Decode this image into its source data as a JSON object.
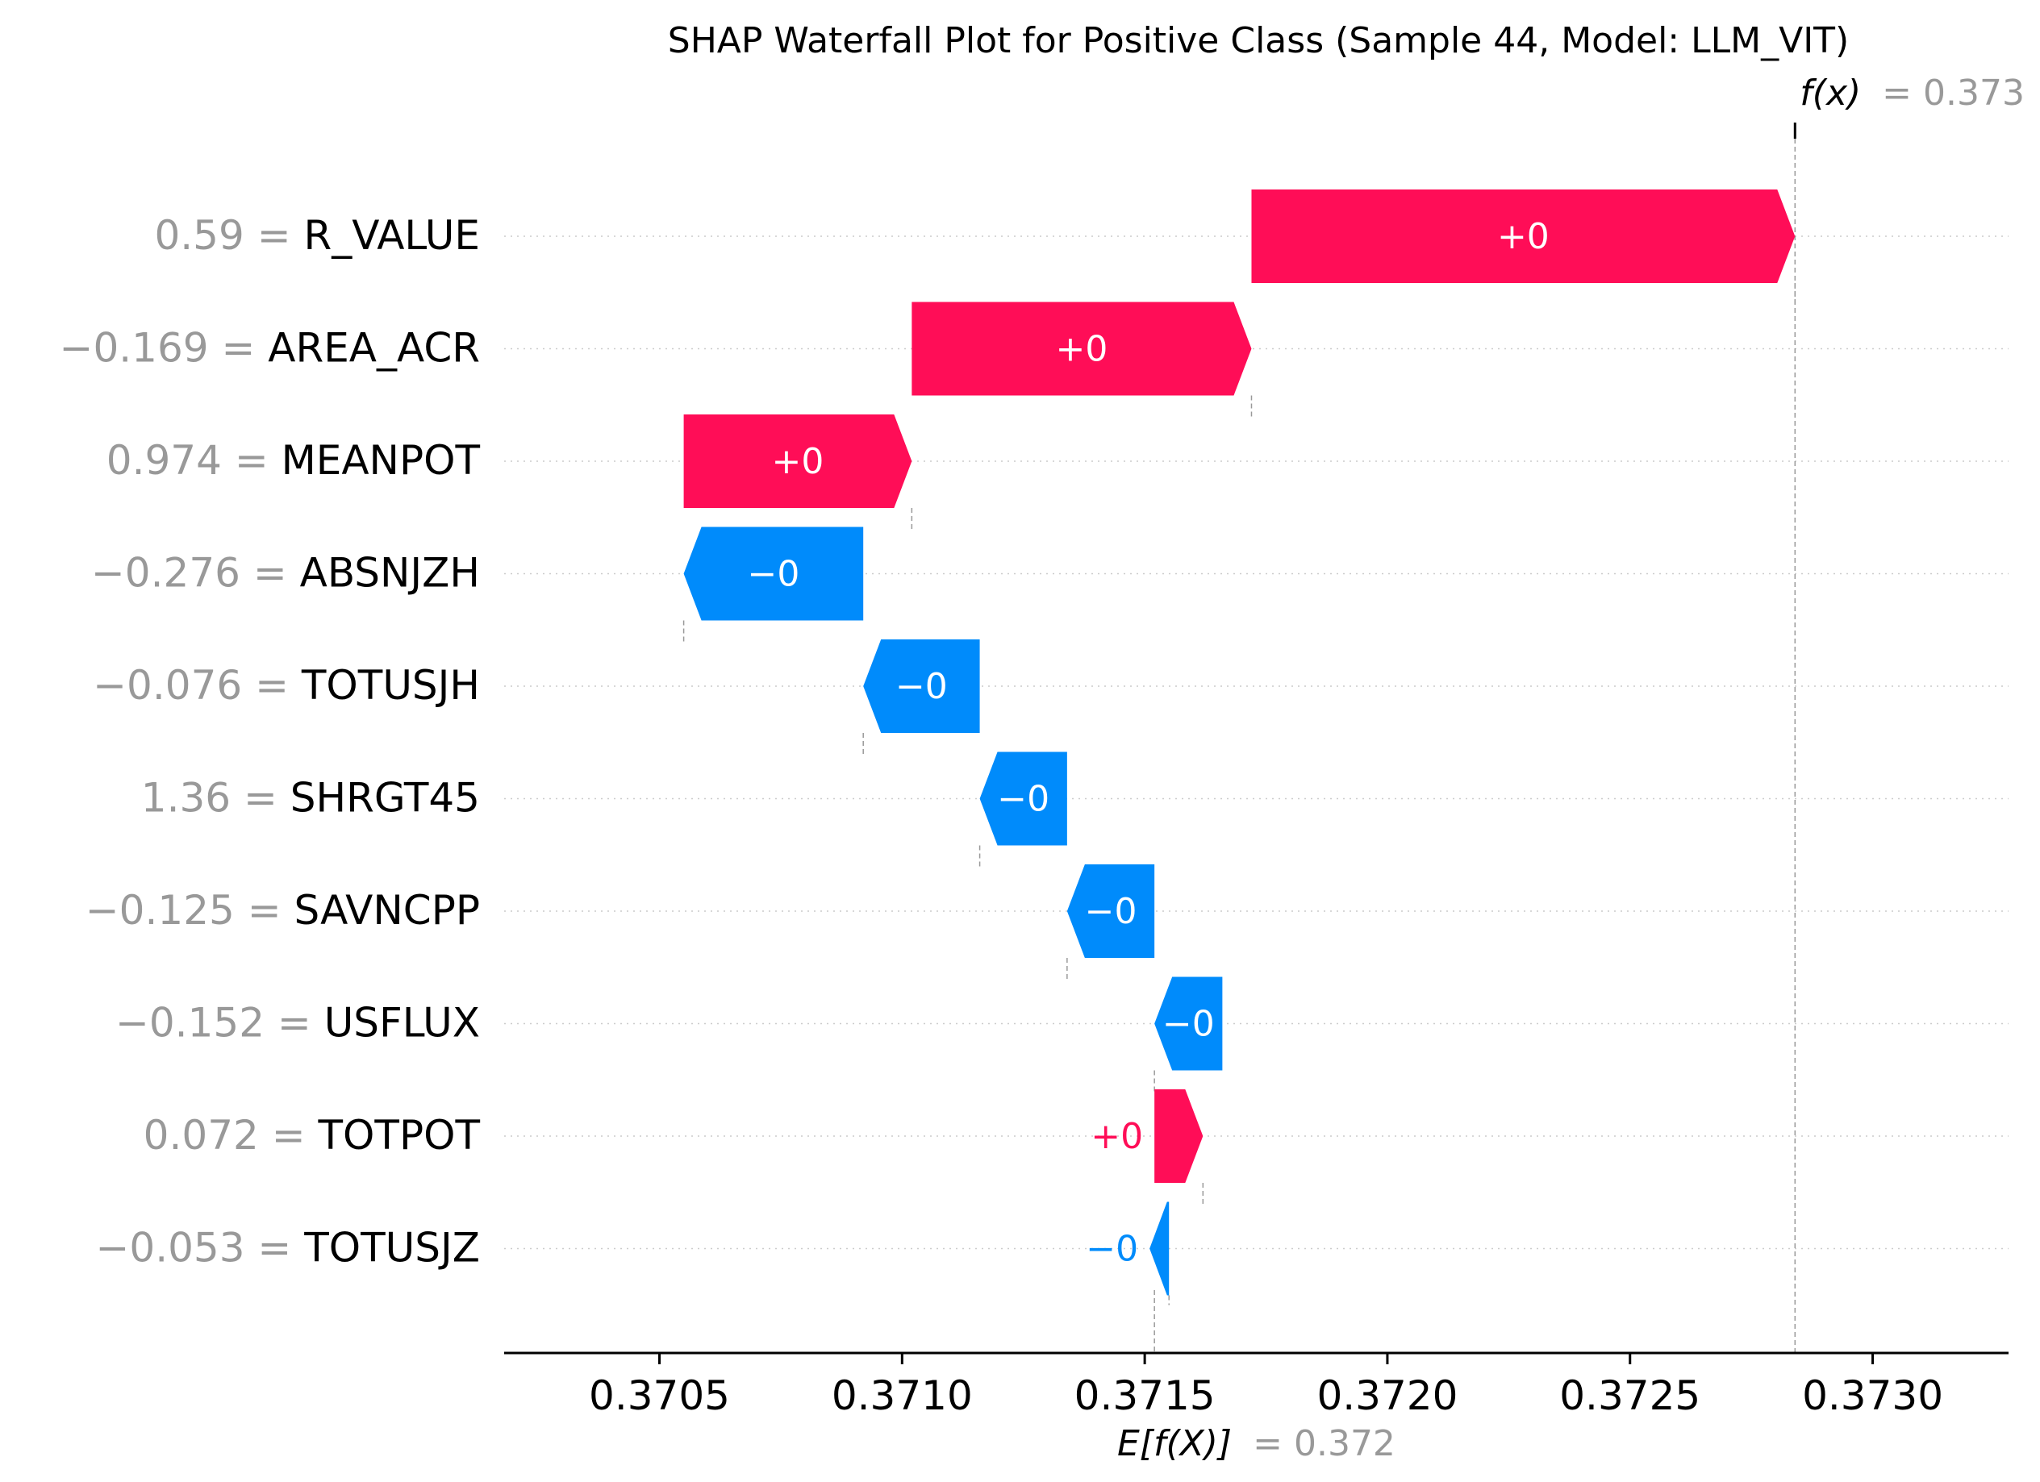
{
  "chart_data": {
    "type": "waterfall",
    "title": "SHAP Waterfall Plot for Positive Class (Sample 44, Model: LLM_VIT)",
    "fx_label": "f(x)",
    "fx_value_text": "= 0.373",
    "fx_value": 0.37284,
    "efx_label": "E[f(X)]",
    "efx_value_text": "= 0.372",
    "efx_value": 0.37152,
    "xlim": [
      0.37018,
      0.37328
    ],
    "ticks": [
      0.3705,
      0.371,
      0.3715,
      0.372,
      0.3725,
      0.373
    ],
    "tick_labels": [
      "0.3705",
      "0.3710",
      "0.3715",
      "0.3720",
      "0.3725",
      "0.3730"
    ],
    "features": [
      {
        "value_text": "0.59 =",
        "name": "R_VALUE",
        "start": 0.37172,
        "end": 0.37284,
        "bar_label": "+0",
        "sign": "pos"
      },
      {
        "value_text": "−0.169 =",
        "name": "AREA_ACR",
        "start": 0.37102,
        "end": 0.37172,
        "bar_label": "+0",
        "sign": "pos"
      },
      {
        "value_text": "0.974 =",
        "name": "MEANPOT",
        "start": 0.37055,
        "end": 0.37102,
        "bar_label": "+0",
        "sign": "pos"
      },
      {
        "value_text": "−0.276 =",
        "name": "ABSNJZH",
        "start": 0.37092,
        "end": 0.37055,
        "bar_label": "−0",
        "sign": "neg"
      },
      {
        "value_text": "−0.076 =",
        "name": "TOTUSJH",
        "start": 0.37116,
        "end": 0.37092,
        "bar_label": "−0",
        "sign": "neg"
      },
      {
        "value_text": "1.36 =",
        "name": "SHRGT45",
        "start": 0.37134,
        "end": 0.37116,
        "bar_label": "−0",
        "sign": "neg"
      },
      {
        "value_text": "−0.125 =",
        "name": "SAVNCPP",
        "start": 0.37152,
        "end": 0.37134,
        "bar_label": "−0",
        "sign": "neg"
      },
      {
        "value_text": "−0.152 =",
        "name": "USFLUX",
        "start": 0.37166,
        "end": 0.37152,
        "bar_label": "−0",
        "sign": "neg"
      },
      {
        "value_text": "0.072 =",
        "name": "TOTPOT",
        "start": 0.37152,
        "end": 0.37162,
        "bar_label": "+0",
        "sign": "pos"
      },
      {
        "value_text": "−0.053 =",
        "name": "TOTUSJZ",
        "start": 0.37155,
        "end": 0.37151,
        "bar_label": "−0",
        "sign": "neg"
      }
    ],
    "colors": {
      "positive": "#ff0d57",
      "negative": "#008bfb",
      "grey": "#999999",
      "axis": "#000000",
      "grid": "#cccccc"
    },
    "grid": true
  }
}
